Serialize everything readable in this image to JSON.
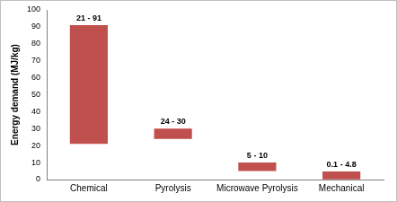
{
  "chart_data": {
    "type": "bar",
    "categories": [
      "Chemical",
      "Pyrolysis",
      "Microwave Pyrolysis",
      "Mechanical"
    ],
    "values": [
      [
        21,
        91
      ],
      [
        24,
        30
      ],
      [
        5,
        10
      ],
      [
        0.1,
        4.8
      ]
    ],
    "value_labels": [
      "21 - 91",
      "24 - 30",
      "5 - 10",
      "0.1 - 4.8"
    ],
    "y_label": "Energy demand (MJ/kg)",
    "color": "#c0504d",
    "ylim": [
      0,
      100
    ],
    "yticks": [
      0,
      10,
      20,
      30,
      40,
      50,
      60,
      70,
      80,
      90,
      100
    ],
    "grid": false,
    "data_labels": true
  }
}
